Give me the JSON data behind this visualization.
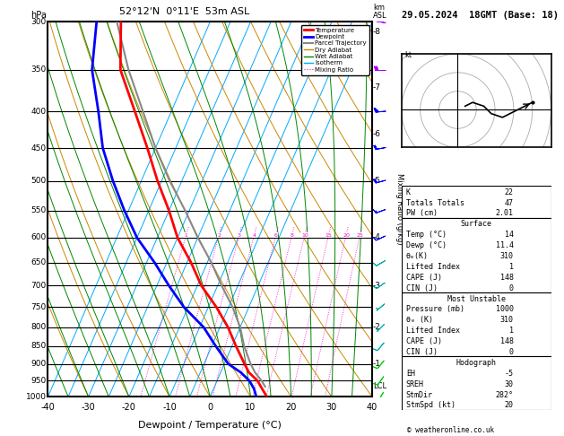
{
  "title_left": "52°12'N  0°11'E  53m ASL",
  "title_right": "29.05.2024  18GMT (Base: 18)",
  "xlabel": "Dewpoint / Temperature (°C)",
  "pressure_ticks": [
    300,
    350,
    400,
    450,
    500,
    550,
    600,
    650,
    700,
    750,
    800,
    850,
    900,
    950,
    1000
  ],
  "temp_range": [
    -40,
    40
  ],
  "temp_ticks": [
    -40,
    -30,
    -20,
    -10,
    0,
    10,
    20,
    30,
    40
  ],
  "km_ticks": [
    8,
    7,
    6,
    5,
    4,
    3,
    2,
    1
  ],
  "km_pressures": [
    310,
    370,
    430,
    500,
    600,
    700,
    800,
    900
  ],
  "lcl_pressure": 968,
  "mixing_ratio_labels": [
    1,
    2,
    3,
    4,
    6,
    8,
    10,
    15,
    20,
    25
  ],
  "mixing_ratio_label_pressure": 595,
  "temperature_profile": {
    "pressure": [
      1000,
      975,
      950,
      925,
      900,
      850,
      800,
      750,
      700,
      650,
      600,
      550,
      500,
      450,
      400,
      350,
      300
    ],
    "temperature": [
      14,
      12,
      10,
      7,
      5,
      1,
      -3,
      -8,
      -14,
      -19,
      -25,
      -30,
      -36,
      -42,
      -49,
      -57,
      -62
    ]
  },
  "dewpoint_profile": {
    "pressure": [
      1000,
      975,
      950,
      925,
      900,
      850,
      800,
      750,
      700,
      650,
      600,
      550,
      500,
      450,
      400,
      350,
      300
    ],
    "temperature": [
      11.4,
      10,
      8,
      5,
      1,
      -4,
      -9,
      -16,
      -22,
      -28,
      -35,
      -41,
      -47,
      -53,
      -58,
      -64,
      -68
    ]
  },
  "parcel_profile": {
    "pressure": [
      968,
      950,
      925,
      900,
      850,
      800,
      750,
      700,
      650,
      600,
      550,
      500,
      450,
      400,
      350,
      300
    ],
    "temperature": [
      12.5,
      11,
      8.5,
      6.5,
      3,
      0,
      -4,
      -9,
      -14,
      -20,
      -26,
      -33,
      -40,
      -47,
      -55,
      -63
    ]
  },
  "colors": {
    "temperature": "#ff0000",
    "dewpoint": "#0000ff",
    "parcel": "#888888",
    "dry_adiabat": "#cc8800",
    "wet_adiabat": "#008800",
    "isotherm": "#00aaff",
    "mixing_ratio": "#ff00cc",
    "background": "#ffffff",
    "grid": "#000000"
  },
  "wind_barb_pressures": [
    300,
    350,
    400,
    450,
    500,
    550,
    600,
    650,
    700,
    750,
    800,
    850,
    900,
    950,
    1000
  ],
  "wind_barb_colors": [
    "#aa00ff",
    "#aa00ff",
    "#0000ff",
    "#0000ff",
    "#0000ff",
    "#0000ff",
    "#0000ff",
    "#00aaaa",
    "#00aaaa",
    "#00aaaa",
    "#00aaaa",
    "#00aaaa",
    "#00cc00",
    "#00cc00",
    "#00cc00"
  ],
  "wind_barb_speeds": [
    35,
    30,
    25,
    22,
    18,
    15,
    12,
    10,
    8,
    7,
    7,
    10,
    12,
    10,
    8
  ],
  "wind_barb_dirs": [
    280,
    270,
    265,
    260,
    255,
    250,
    245,
    240,
    235,
    230,
    225,
    220,
    220,
    215,
    210
  ],
  "hodo_u": [
    2,
    4,
    7,
    9,
    12,
    14,
    16,
    18,
    20
  ],
  "hodo_v": [
    1,
    2,
    1,
    -1,
    -2,
    -1,
    0,
    1,
    2
  ],
  "info": {
    "K": 22,
    "TT": 47,
    "PW": 2.01,
    "Surf_Temp": 14,
    "Surf_Dewp": 11.4,
    "Surf_theta_e": 310,
    "Surf_LI": 1,
    "Surf_CAPE": 148,
    "Surf_CIN": 0,
    "MU_Pressure": 1000,
    "MU_theta_e": 310,
    "MU_LI": 1,
    "MU_CAPE": 148,
    "MU_CIN": 0,
    "EH": -5,
    "SREH": 30,
    "StmDir": 282,
    "StmSpd": 20
  }
}
